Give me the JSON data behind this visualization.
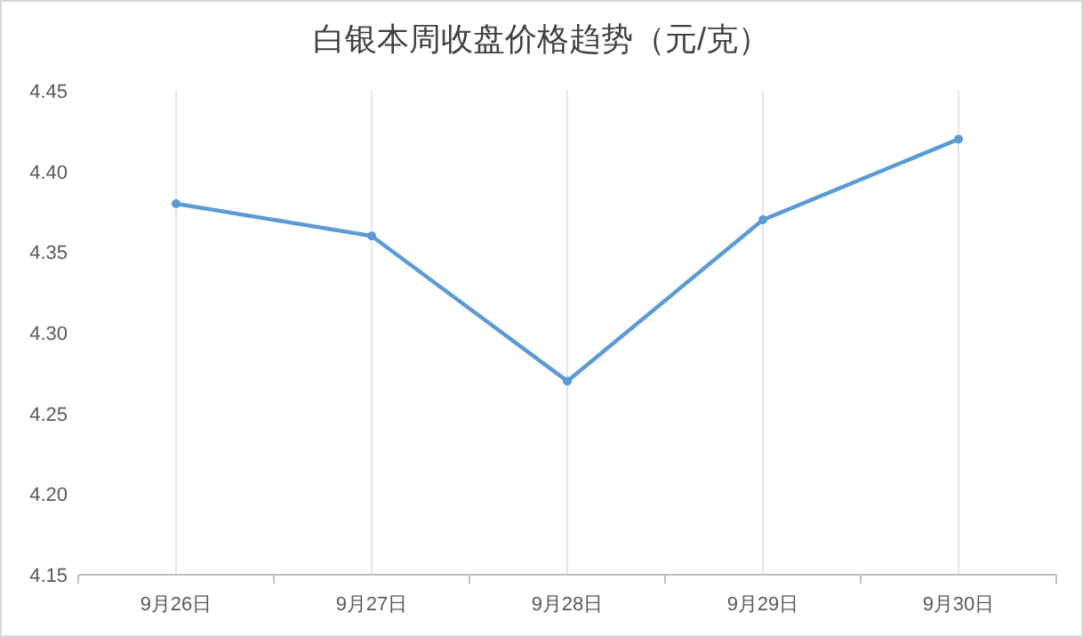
{
  "chart_data": {
    "type": "line",
    "title": "白银本周收盘价格趋势（元/克）",
    "categories": [
      "9月26日",
      "9月27日",
      "9月28日",
      "9月29日",
      "9月30日"
    ],
    "series": [
      {
        "color": "#5b9bd5",
        "values": [
          4.38,
          4.36,
          4.27,
          4.37,
          4.42
        ]
      }
    ],
    "ylim": [
      4.15,
      4.45
    ],
    "yticks": [
      4.15,
      {
        "value": 4.2,
        "label": "4.20"
      },
      4.25,
      {
        "value": 4.3,
        "label": "4.30"
      },
      4.35,
      {
        "value": 4.4,
        "label": "4.40"
      },
      4.45
    ],
    "grid": "x",
    "marker": "circle",
    "line_style": "solid"
  }
}
